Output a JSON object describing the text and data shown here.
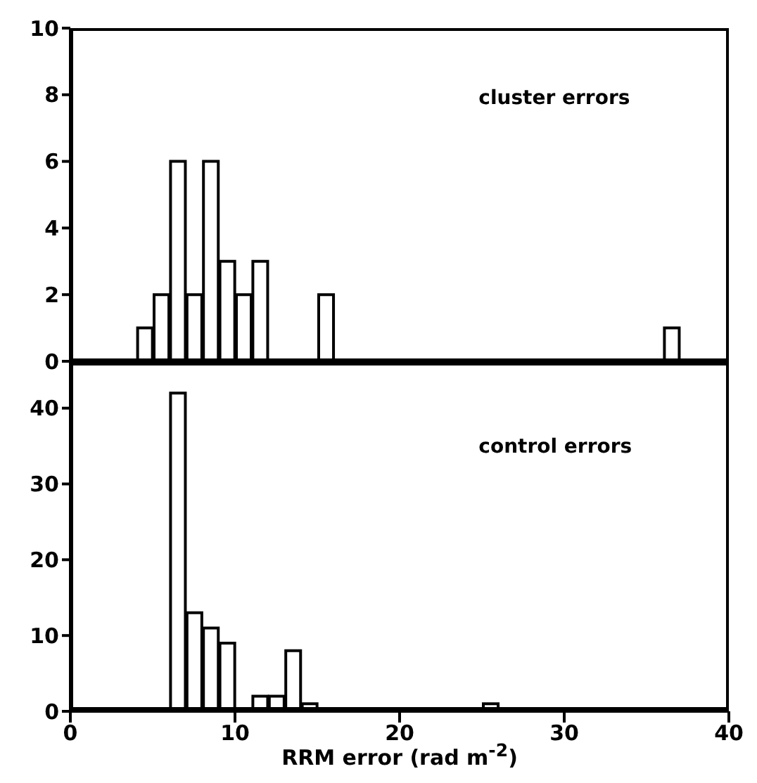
{
  "chart_data": [
    {
      "type": "histogram",
      "annotations": [
        "cluster errors"
      ],
      "bins": [
        4,
        5,
        6,
        7,
        8,
        9,
        10,
        11,
        12,
        13,
        14,
        15,
        16,
        17,
        18,
        19,
        20,
        21,
        22,
        23,
        24,
        25,
        26,
        27,
        28,
        29,
        30,
        31,
        32,
        33,
        34,
        35,
        36,
        37
      ],
      "values": [
        1,
        2,
        6,
        2,
        6,
        3,
        2,
        3,
        0,
        0,
        0,
        2,
        0,
        0,
        0,
        0,
        0,
        0,
        0,
        0,
        0,
        0,
        0,
        0,
        0,
        0,
        0,
        0,
        0,
        0,
        0,
        0,
        1
      ],
      "color": "#000000",
      "xlim": [
        0,
        40
      ],
      "xticks": [
        0,
        10,
        20,
        30,
        40
      ],
      "ylim": [
        0,
        10
      ],
      "yticks": [
        0,
        2,
        4,
        6,
        8,
        10
      ],
      "tick_labels": "y"
    },
    {
      "type": "histogram",
      "annotations": [
        "control errors"
      ],
      "xlabel": "RRM error (rad m$^{-2}$)",
      "bins": [
        6,
        7,
        8,
        9,
        10,
        11,
        12,
        13,
        14,
        15,
        16,
        17,
        18,
        19,
        20,
        21,
        22,
        23,
        24,
        25,
        26
      ],
      "values": [
        42,
        13,
        11,
        9,
        0,
        2,
        2,
        8,
        1,
        0,
        0,
        0,
        0,
        0,
        0,
        0,
        0,
        0,
        0,
        1
      ],
      "color": "#000000",
      "xlim": [
        0,
        40
      ],
      "xticks": [
        0,
        10,
        20,
        30,
        40
      ],
      "ylim": [
        0,
        46
      ],
      "yticks": [
        0,
        10,
        20,
        30,
        40
      ]
    }
  ]
}
